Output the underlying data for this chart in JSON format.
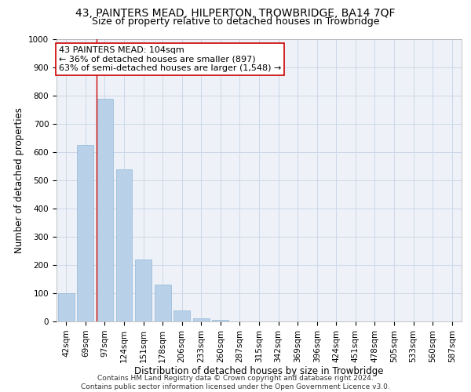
{
  "title": "43, PAINTERS MEAD, HILPERTON, TROWBRIDGE, BA14 7QF",
  "subtitle": "Size of property relative to detached houses in Trowbridge",
  "xlabel": "Distribution of detached houses by size in Trowbridge",
  "ylabel": "Number of detached properties",
  "bar_values": [
    100,
    625,
    790,
    540,
    220,
    130,
    40,
    12,
    5,
    0,
    0,
    0,
    0,
    0,
    0,
    0,
    0,
    0,
    0,
    0,
    0
  ],
  "categories": [
    "42sqm",
    "69sqm",
    "97sqm",
    "124sqm",
    "151sqm",
    "178sqm",
    "206sqm",
    "233sqm",
    "260sqm",
    "287sqm",
    "315sqm",
    "342sqm",
    "369sqm",
    "396sqm",
    "424sqm",
    "451sqm",
    "478sqm",
    "505sqm",
    "533sqm",
    "560sqm",
    "587sqm"
  ],
  "bar_color": "#b8d0e8",
  "bar_edge_color": "#90b8d8",
  "grid_color": "#ccd8e8",
  "background_color": "#eef2f8",
  "vline_color": "#cc0000",
  "annotation_text": "43 PAINTERS MEAD: 104sqm\n← 36% of detached houses are smaller (897)\n63% of semi-detached houses are larger (1,548) →",
  "annotation_box_color": "#ffffff",
  "annotation_box_edge": "#cc0000",
  "ylim": [
    0,
    1000
  ],
  "yticks": [
    0,
    100,
    200,
    300,
    400,
    500,
    600,
    700,
    800,
    900,
    1000
  ],
  "footer": "Contains HM Land Registry data © Crown copyright and database right 2024.\nContains public sector information licensed under the Open Government Licence v3.0.",
  "title_fontsize": 10,
  "subtitle_fontsize": 9,
  "xlabel_fontsize": 8.5,
  "ylabel_fontsize": 8.5,
  "tick_fontsize": 7.5,
  "annotation_fontsize": 8,
  "footer_fontsize": 6.5
}
